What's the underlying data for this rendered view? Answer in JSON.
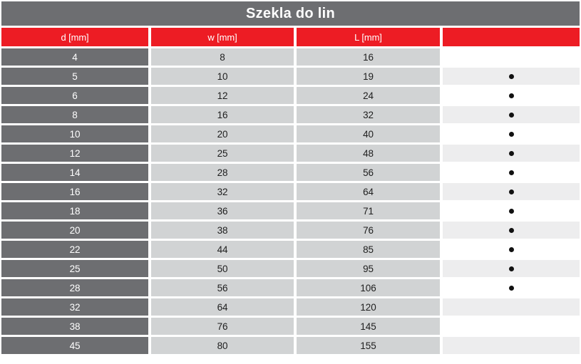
{
  "title": "Szekla do lin",
  "table": {
    "columns": [
      "d [mm]",
      "w [mm]",
      "L [mm]",
      ""
    ],
    "marker_glyph": "•",
    "rows": [
      {
        "d": "4",
        "w": "8",
        "L": "16",
        "marker": false
      },
      {
        "d": "5",
        "w": "10",
        "L": "19",
        "marker": true
      },
      {
        "d": "6",
        "w": "12",
        "L": "24",
        "marker": true
      },
      {
        "d": "8",
        "w": "16",
        "L": "32",
        "marker": true
      },
      {
        "d": "10",
        "w": "20",
        "L": "40",
        "marker": true
      },
      {
        "d": "12",
        "w": "25",
        "L": "48",
        "marker": true
      },
      {
        "d": "14",
        "w": "28",
        "L": "56",
        "marker": true
      },
      {
        "d": "16",
        "w": "32",
        "L": "64",
        "marker": true
      },
      {
        "d": "18",
        "w": "36",
        "L": "71",
        "marker": true
      },
      {
        "d": "20",
        "w": "38",
        "L": "76",
        "marker": true
      },
      {
        "d": "22",
        "w": "44",
        "L": "85",
        "marker": true
      },
      {
        "d": "25",
        "w": "50",
        "L": "95",
        "marker": true
      },
      {
        "d": "28",
        "w": "56",
        "L": "106",
        "marker": true
      },
      {
        "d": "32",
        "w": "64",
        "L": "120",
        "marker": false
      },
      {
        "d": "38",
        "w": "76",
        "L": "145",
        "marker": false
      },
      {
        "d": "45",
        "w": "80",
        "L": "155",
        "marker": false
      }
    ]
  },
  "colors": {
    "title_bg": "#6d6e71",
    "header_bg": "#ed1c24",
    "dark_cell_bg": "#6d6e71",
    "light_cell_bg": "#d1d3d4",
    "alt_row_bg": "#ededee",
    "dot_color": "#111111"
  },
  "chart_data": {
    "type": "table",
    "title": "Szekla do lin",
    "columns": [
      "d [mm]",
      "w [mm]",
      "L [mm]",
      ""
    ],
    "rows": [
      [
        4,
        8,
        16,
        ""
      ],
      [
        5,
        10,
        19,
        "•"
      ],
      [
        6,
        12,
        24,
        "•"
      ],
      [
        8,
        16,
        32,
        "•"
      ],
      [
        10,
        20,
        40,
        "•"
      ],
      [
        12,
        25,
        48,
        "•"
      ],
      [
        14,
        28,
        56,
        "•"
      ],
      [
        16,
        32,
        64,
        "•"
      ],
      [
        18,
        36,
        71,
        "•"
      ],
      [
        20,
        38,
        76,
        "•"
      ],
      [
        22,
        44,
        85,
        "•"
      ],
      [
        25,
        50,
        95,
        "•"
      ],
      [
        28,
        56,
        106,
        "•"
      ],
      [
        32,
        64,
        120,
        ""
      ],
      [
        38,
        76,
        145,
        ""
      ],
      [
        45,
        80,
        155,
        ""
      ]
    ]
  }
}
